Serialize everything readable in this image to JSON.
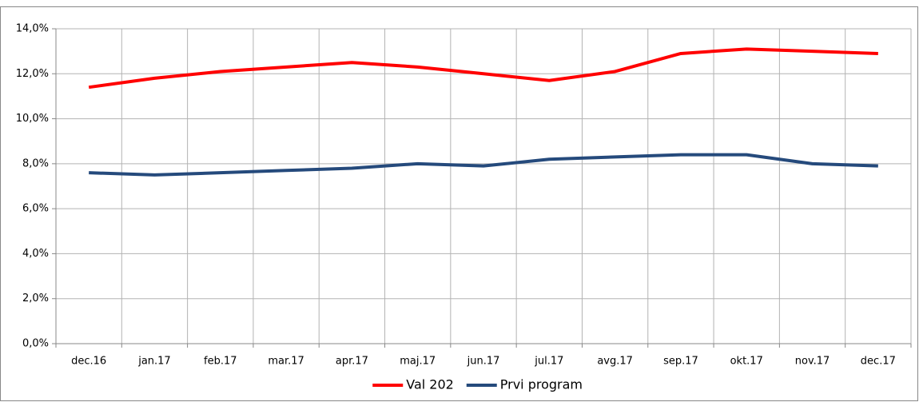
{
  "chart_data": {
    "type": "line",
    "categories": [
      "dec.16",
      "jan.17",
      "feb.17",
      "mar.17",
      "apr.17",
      "maj.17",
      "jun.17",
      "jul.17",
      "avg.17",
      "sep.17",
      "okt.17",
      "nov.17",
      "dec.17"
    ],
    "series": [
      {
        "name": "Val 202",
        "color": "#ff0000",
        "values": [
          11.4,
          11.8,
          12.1,
          12.3,
          12.5,
          12.3,
          12.0,
          11.7,
          12.1,
          12.9,
          13.1,
          13.0,
          12.9
        ]
      },
      {
        "name": "Prvi program",
        "color": "#254a7c",
        "values": [
          7.6,
          7.5,
          7.6,
          7.7,
          7.8,
          8.0,
          7.9,
          8.2,
          8.3,
          8.4,
          8.4,
          8.0,
          7.9
        ]
      }
    ],
    "ylim": [
      0,
      14
    ],
    "yticks": [
      {
        "value": 0,
        "label": "0,0%"
      },
      {
        "value": 2,
        "label": "2,0%"
      },
      {
        "value": 4,
        "label": "4,0%"
      },
      {
        "value": 6,
        "label": "6,0%"
      },
      {
        "value": 8,
        "label": "8,0%"
      },
      {
        "value": 10,
        "label": "10,0%"
      },
      {
        "value": 12,
        "label": "12,0%"
      },
      {
        "value": 14,
        "label": "14,0%"
      }
    ],
    "grid": true,
    "legend": "bottom"
  }
}
